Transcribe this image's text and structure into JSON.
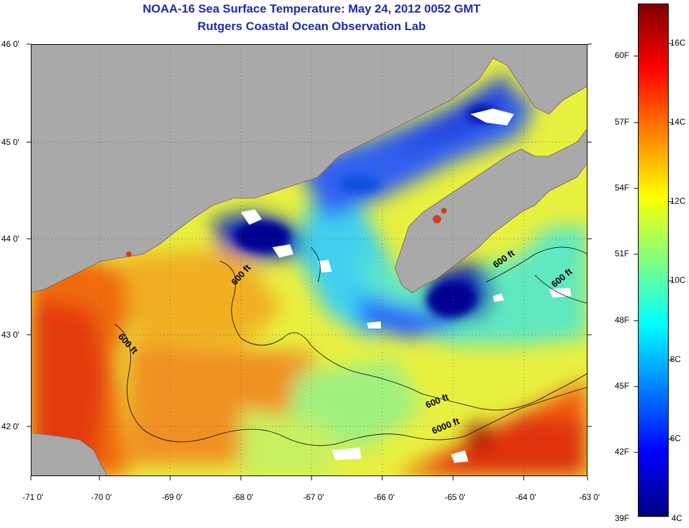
{
  "title": {
    "line1": "NOAA-16 Sea Surface Temperature:  May 24, 2012 0052 GMT",
    "line2": "Rutgers Coastal Ocean Observation Lab"
  },
  "axes": {
    "x_ticks": [
      "-71 0'",
      "-70 0'",
      "-69 0'",
      "-68 0'",
      "-67 0'",
      "-66 0'",
      "-65 0'",
      "-64 0'",
      "-63 0'"
    ],
    "y_ticks": [
      "46 0'",
      "45 0'",
      "44 0'",
      "43 0'",
      "42 0'"
    ]
  },
  "contours": {
    "labels": [
      "600 ft",
      "600 ft",
      "600 ft",
      "600 ft",
      "600 ft",
      "6000 ft"
    ]
  },
  "colorbar": {
    "fahrenheit": [
      "60F",
      "57F",
      "54F",
      "51F",
      "48F",
      "45F",
      "42F",
      "39F"
    ],
    "celsius": [
      "16C",
      "14C",
      "12C",
      "10C",
      "8C",
      "6C",
      "4C"
    ],
    "range_c": [
      4,
      17
    ],
    "colors": [
      "#00007f",
      "#0000ff",
      "#0080ff",
      "#00ffff",
      "#80ff80",
      "#ffff00",
      "#ff8000",
      "#ff0000",
      "#7f0000"
    ]
  },
  "colors": {
    "land": "#a9a9a9",
    "title": "#1c2bb0",
    "cloud": "#ffffff"
  }
}
